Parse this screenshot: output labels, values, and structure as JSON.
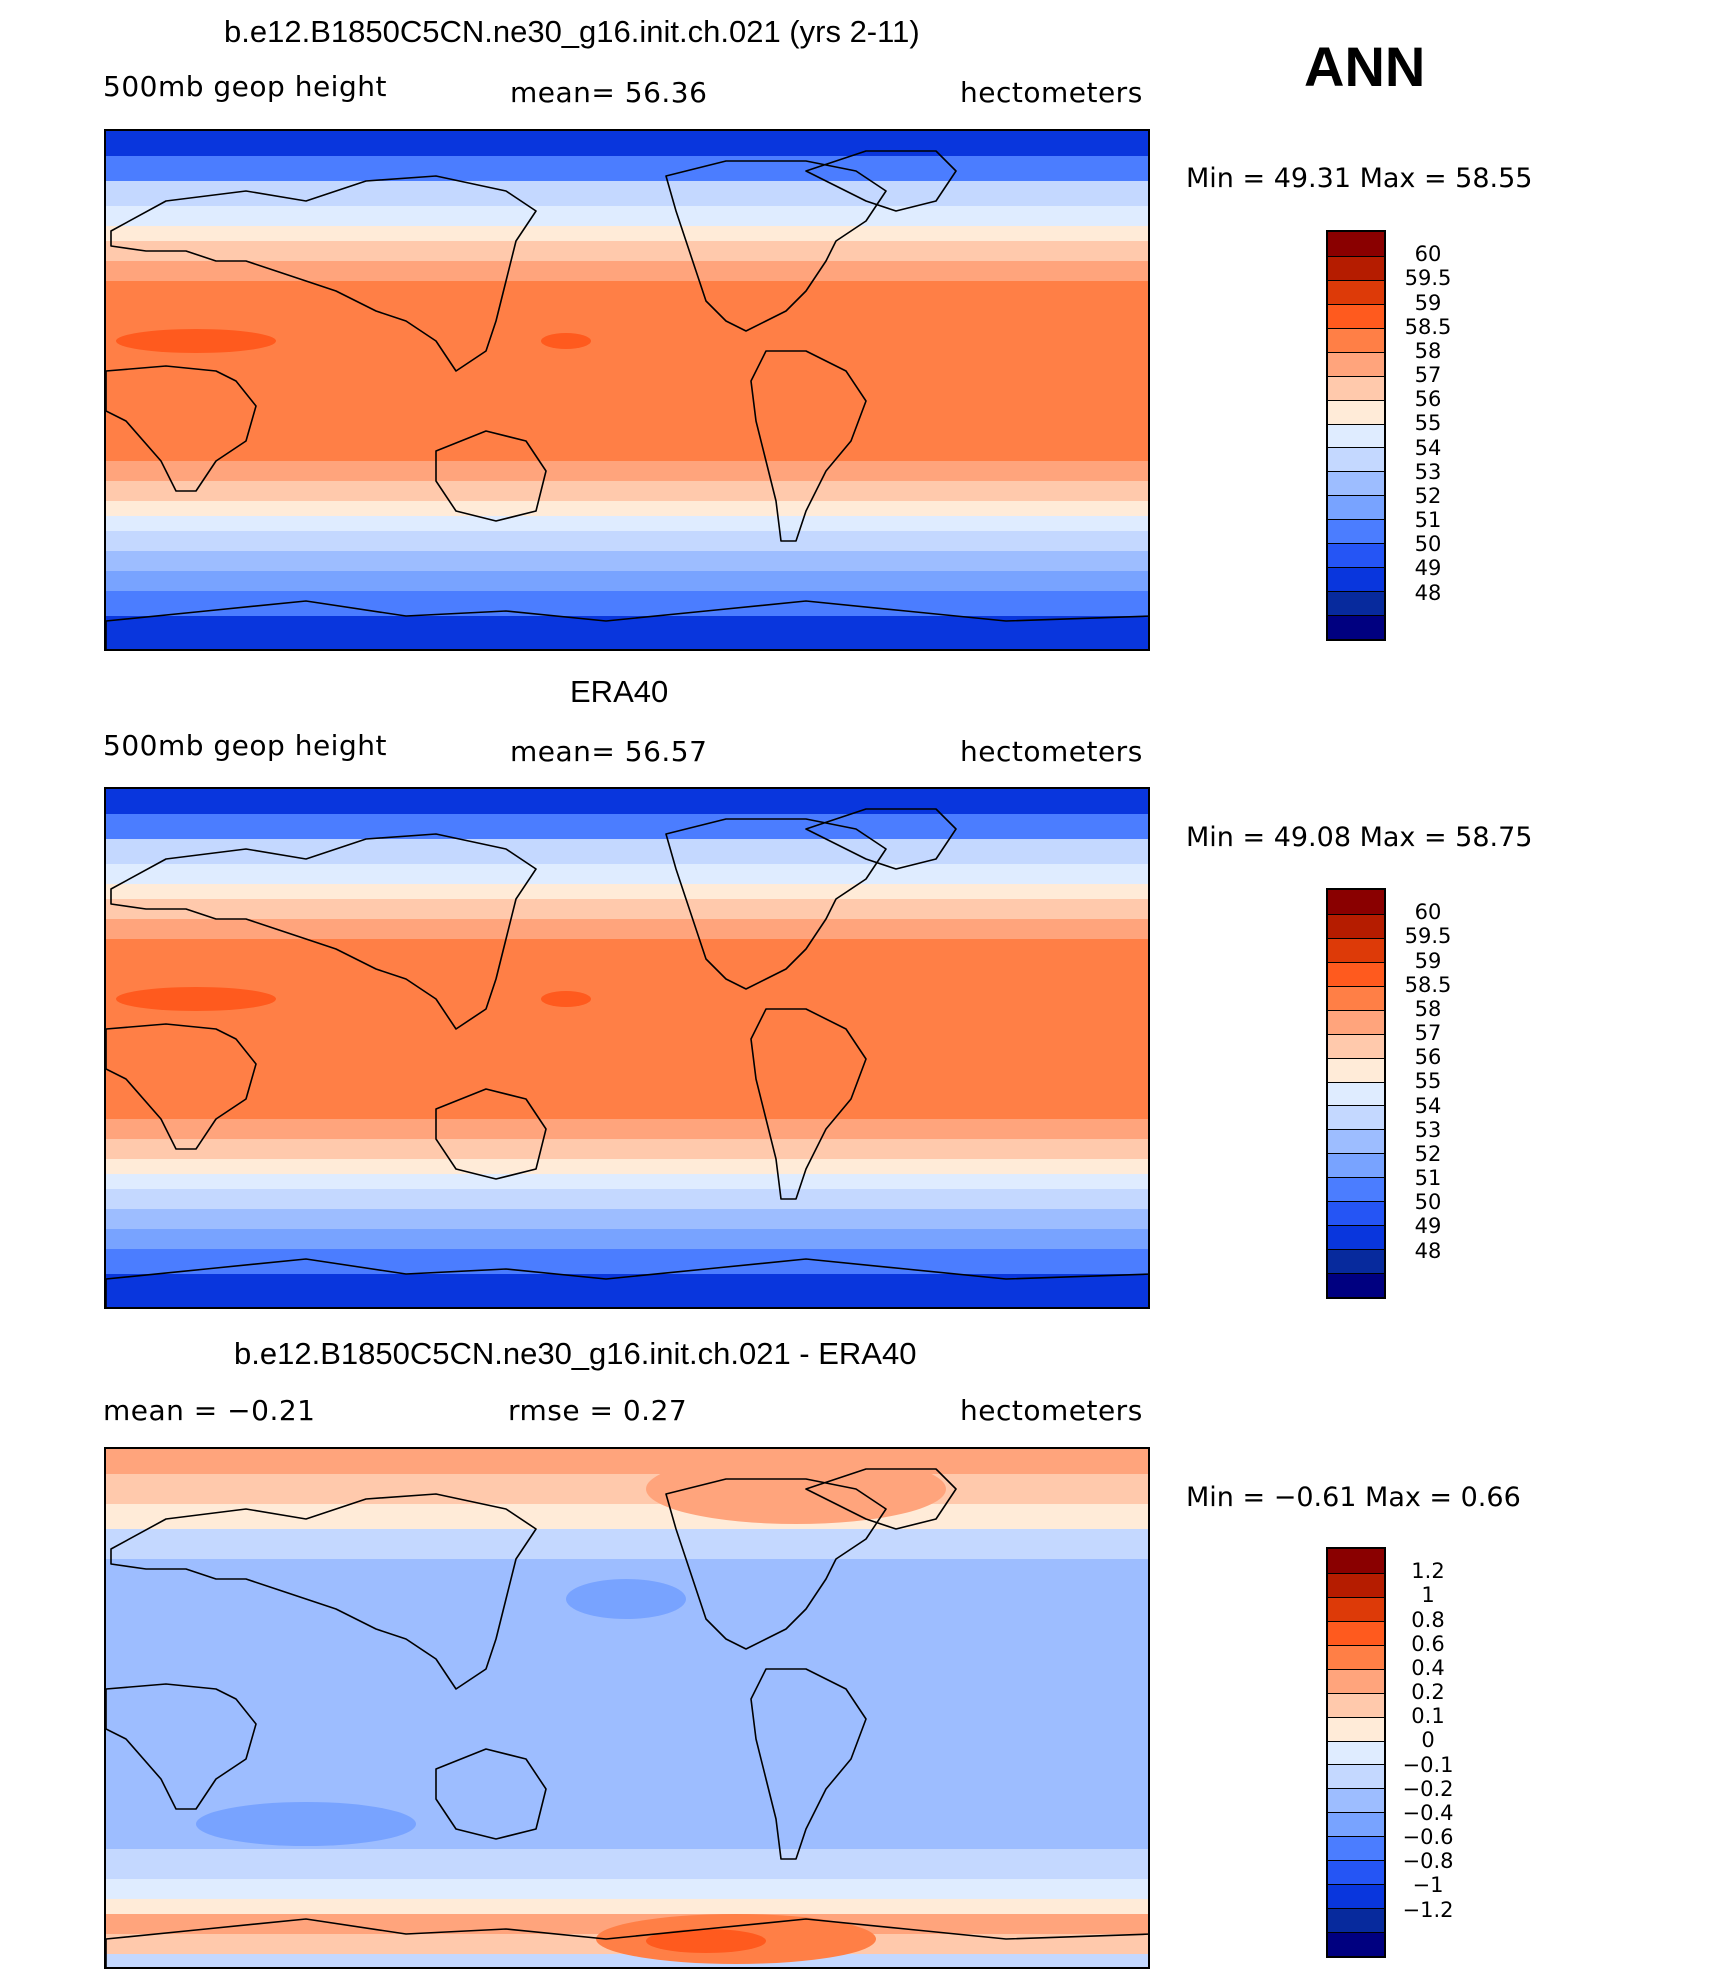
{
  "season": "ANN",
  "panels": [
    {
      "title": "b.e12.B1850C5CN.ne30_g16.init.ch.021 (yrs 2-11)",
      "left_label": "500mb  geop  height",
      "center_label": "mean=   56.36",
      "right_label": "hectometers",
      "minmax": "Min  =    49.31  Max  =    58.55",
      "kind": "abs",
      "colorbar_labels": [
        "60",
        "59.5",
        "59",
        "58.5",
        "58",
        "57",
        "56",
        "55",
        "54",
        "53",
        "52",
        "51",
        "50",
        "49",
        "48"
      ],
      "colors": [
        "#8a0000",
        "#b51c00",
        "#dd3a08",
        "#ff5a1e",
        "#ff7f46",
        "#ffa47c",
        "#ffc9ac",
        "#ffebd8",
        "#dfecff",
        "#c4d8ff",
        "#9dbdff",
        "#78a3ff",
        "#4b7dff",
        "#2555f5",
        "#0936dd",
        "#072a9d",
        "#000080"
      ]
    },
    {
      "title": "ERA40",
      "left_label": "500mb  geop  height",
      "center_label": "mean=   56.57",
      "right_label": "hectometers",
      "minmax": "Min  =    49.08  Max  =    58.75",
      "kind": "abs",
      "colorbar_labels": [
        "60",
        "59.5",
        "59",
        "58.5",
        "58",
        "57",
        "56",
        "55",
        "54",
        "53",
        "52",
        "51",
        "50",
        "49",
        "48"
      ],
      "colors": [
        "#8a0000",
        "#b51c00",
        "#dd3a08",
        "#ff5a1e",
        "#ff7f46",
        "#ffa47c",
        "#ffc9ac",
        "#ffebd8",
        "#dfecff",
        "#c4d8ff",
        "#9dbdff",
        "#78a3ff",
        "#4b7dff",
        "#2555f5",
        "#0936dd",
        "#072a9d",
        "#000080"
      ]
    },
    {
      "title": "b.e12.B1850C5CN.ne30_g16.init.ch.021 - ERA40",
      "left_label": "mean  =    −0.21",
      "center_label": "rmse  =     0.27",
      "right_label": "hectometers",
      "minmax": "Min  =   −0.61  Max  =     0.66",
      "kind": "diff",
      "colorbar_labels": [
        "1.2",
        "1",
        "0.8",
        "0.6",
        "0.4",
        "0.2",
        "0.1",
        "0",
        "−0.1",
        "−0.2",
        "−0.4",
        "−0.6",
        "−0.8",
        "−1",
        "−1.2"
      ],
      "colors": [
        "#8a0000",
        "#b51c00",
        "#dd3a08",
        "#ff5a1e",
        "#ff7f46",
        "#ffa47c",
        "#ffc9ac",
        "#ffebd8",
        "#dfecff",
        "#c4d8ff",
        "#9dbdff",
        "#78a3ff",
        "#4b7dff",
        "#2555f5",
        "#0936dd",
        "#072a9d",
        "#000080"
      ]
    }
  ]
}
